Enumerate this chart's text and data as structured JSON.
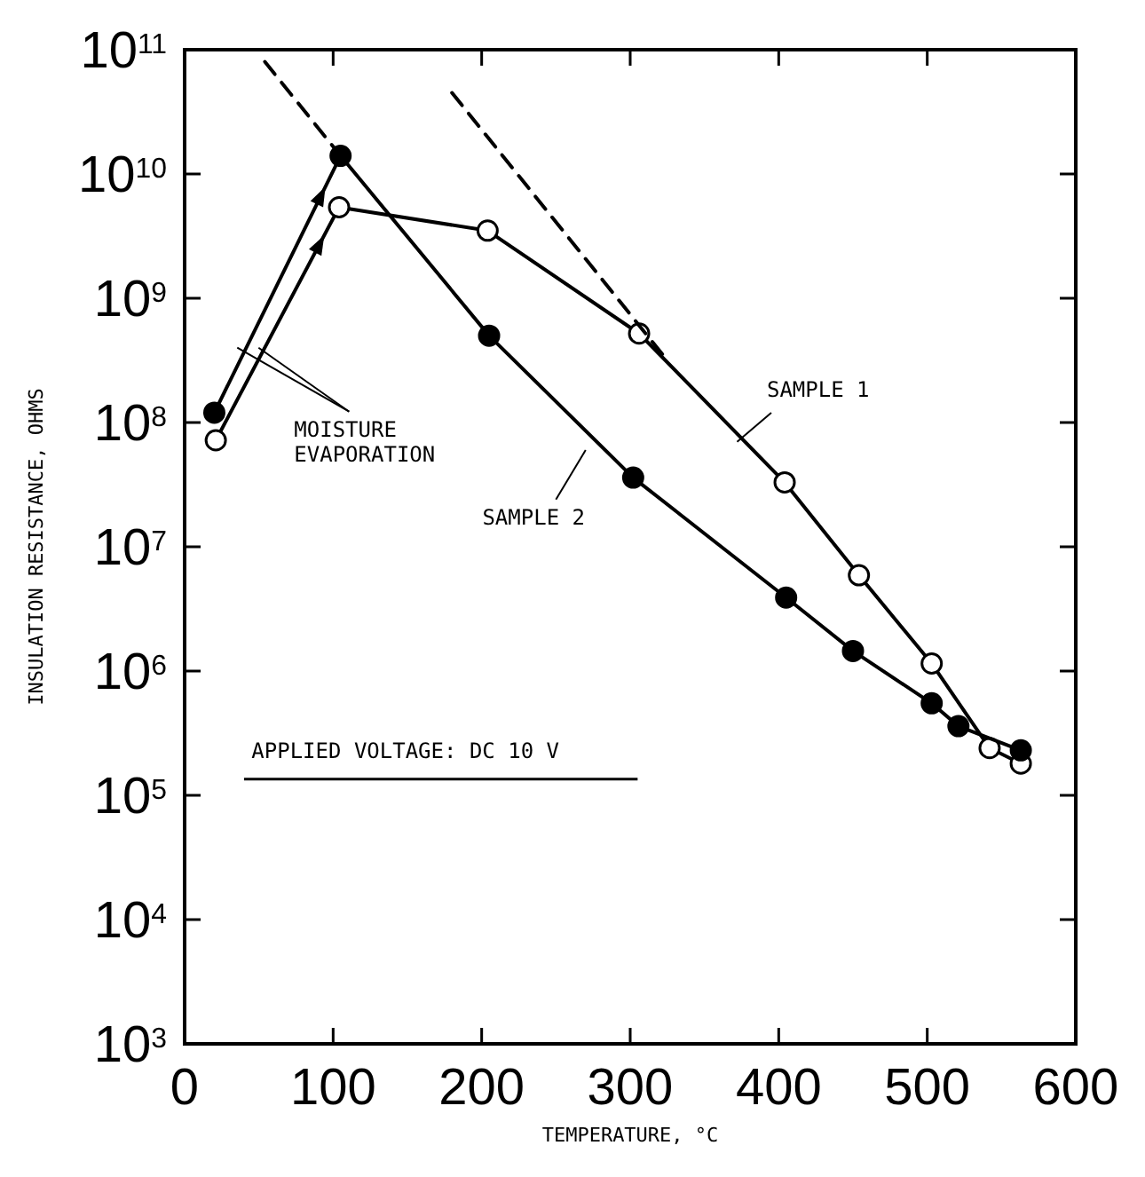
{
  "chart_data": {
    "type": "line",
    "xlabel": "TEMPERATURE, °C",
    "ylabel": "INSULATION RESISTANCE, OHMS",
    "log": "y",
    "xlim": [
      0,
      600
    ],
    "ylim": [
      1000,
      100000000000
    ],
    "xticks": [
      0,
      100,
      200,
      300,
      400,
      500,
      600
    ],
    "yticks": [
      {
        "value": 1000,
        "label": "10$^{3}$"
      },
      {
        "value": 10000,
        "label": "10$^{4}$"
      },
      {
        "value": 100000,
        "label": "10$^{5}$"
      },
      {
        "value": 1000000,
        "label": "10$^{6}$"
      },
      {
        "value": 10000000,
        "label": "10$^{7}$"
      },
      {
        "value": 100000000,
        "label": "10$^{8}$"
      },
      {
        "value": 1000000000,
        "label": "10$^{9}$"
      },
      {
        "value": 10000000000,
        "label": "10$^{10}$"
      },
      {
        "value": 100000000000,
        "label": "10$^{11}$"
      }
    ],
    "series": [
      {
        "name": "SAMPLE 1",
        "color": "#000000",
        "marker": "circle",
        "x": [
          21,
          104,
          204,
          306,
          404,
          454,
          503,
          542,
          563
        ],
        "values": [
          72000000,
          5400000000,
          3500000000,
          520000000,
          33000000,
          5900000,
          1150000,
          240000,
          180000
        ]
      },
      {
        "name": "SAMPLE 2",
        "color": "#000000",
        "marker": "circle",
        "x": [
          20,
          105,
          205,
          302,
          405,
          450,
          503,
          521,
          563
        ],
        "values": [
          120000000,
          14000000000,
          500000000,
          36000000,
          3900000,
          1450000,
          550000,
          360000,
          230000
        ]
      },
      {
        "color": "#000000",
        "marker": "none",
        "line_style": "dashed",
        "x": [
          54,
          105
        ],
        "values": [
          80000000000,
          14000000000
        ]
      },
      {
        "color": "#000000",
        "marker": "none",
        "line_style": "dashed",
        "x": [
          180,
          322
        ],
        "values": [
          45000000000,
          350000000
        ]
      }
    ],
    "annotations": [
      {
        "text": "MOISTURE EVAPORATION",
        "x": 45,
        "y": 400000000
      },
      "APPLIED VOLTAGE: DC 10 V"
    ]
  }
}
